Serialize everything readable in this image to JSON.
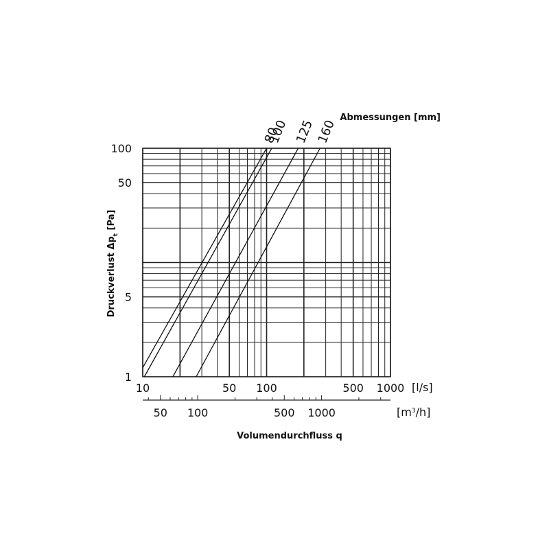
{
  "chart_data": {
    "type": "line",
    "title": "Abmessungen [mm]",
    "xlabel": "Volumendurchfluss q",
    "ylabel": "Druckverlust Δp",
    "ylabel_sub": "t",
    "ylabel_unit": " [Pa]",
    "x_scale": "log",
    "y_scale": "log",
    "xlim": [
      10,
      1000
    ],
    "ylim": [
      1,
      100
    ],
    "grid": true,
    "x_unit_primary": "[l/s]",
    "x_unit_secondary_pre": "[m",
    "x_unit_secondary_sup": "3",
    "x_unit_secondary_post": "/h]",
    "x_ticks_primary": [
      {
        "value": 10,
        "label": "10"
      },
      {
        "value": 50,
        "label": "50"
      },
      {
        "value": 100,
        "label": "100"
      },
      {
        "value": 500,
        "label": "500"
      },
      {
        "value": 1000,
        "label": "1000"
      }
    ],
    "x_ticks_secondary": [
      {
        "value": 50,
        "label": "50"
      },
      {
        "value": 100,
        "label": "100"
      },
      {
        "value": 500,
        "label": "500"
      },
      {
        "value": 1000,
        "label": "1000"
      }
    ],
    "y_ticks": [
      {
        "value": 1,
        "label": "1"
      },
      {
        "value": 5,
        "label": "5"
      },
      {
        "value": 50,
        "label": "50"
      },
      {
        "value": 100,
        "label": "100"
      }
    ],
    "series": [
      {
        "name": "80",
        "points": [
          [
            10,
            1.2
          ],
          [
            100,
            100
          ]
        ]
      },
      {
        "name": "100",
        "points": [
          [
            10.3,
            1.0
          ],
          [
            110,
            100
          ]
        ]
      },
      {
        "name": "125",
        "points": [
          [
            17.5,
            1.0
          ],
          [
            180,
            100
          ]
        ]
      },
      {
        "name": "160",
        "points": [
          [
            27,
            1.0
          ],
          [
            270,
            100
          ]
        ]
      }
    ]
  }
}
